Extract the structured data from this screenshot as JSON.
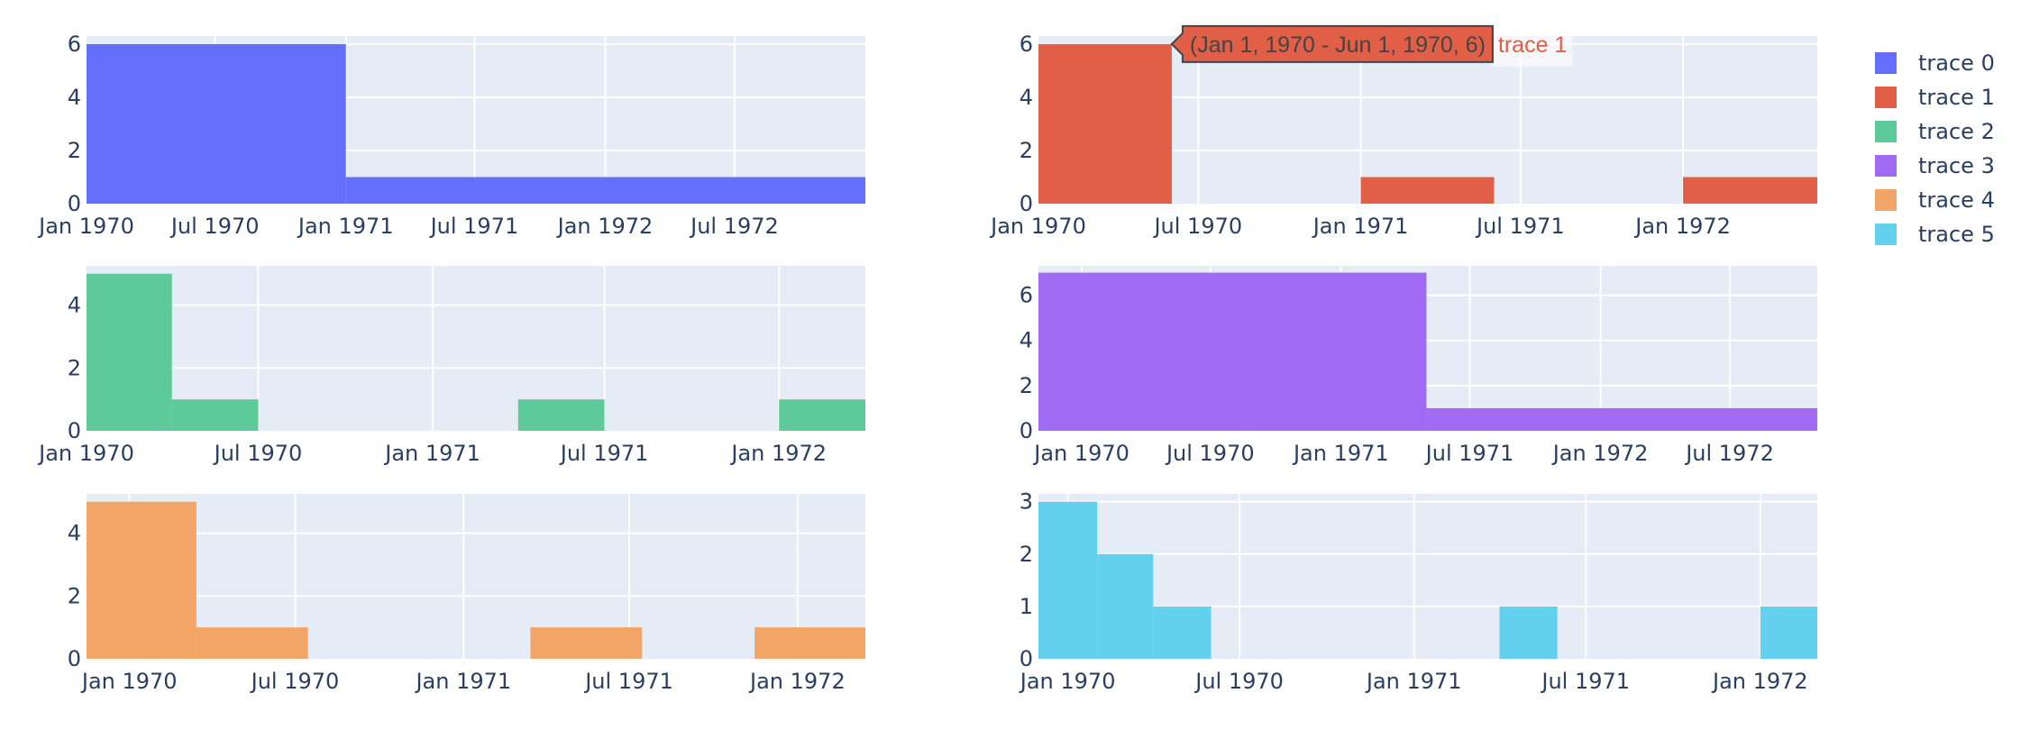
{
  "chart_data": {
    "type": "bar",
    "subplots": [
      {
        "name": "trace 0",
        "color": "#636efa",
        "x_ticks": [
          "Jan 1970",
          "Jul 1970",
          "Jan 1971",
          "Jul 1971",
          "Jan 1972",
          "Jul 1972"
        ],
        "y_ticks": [
          "0",
          "2",
          "4",
          "6"
        ],
        "bins": [
          {
            "start": "1970-01-01",
            "end": "1971-01-01",
            "value": 6
          },
          {
            "start": "1971-01-01",
            "end": "1973-01-01",
            "value": 1
          }
        ],
        "xrange": [
          "1970-01-01",
          "1973-01-01"
        ],
        "ylim": [
          0,
          6.3
        ]
      },
      {
        "name": "trace 1",
        "color": "#e05f46",
        "x_ticks": [
          "Jan 1970",
          "Jul 1970",
          "Jan 1971",
          "Jul 1971",
          "Jan 1972"
        ],
        "y_ticks": [
          "0",
          "2",
          "4",
          "6"
        ],
        "bins": [
          {
            "start": "1970-01-01",
            "end": "1970-06-01",
            "value": 6
          },
          {
            "start": "1971-01-01",
            "end": "1971-06-01",
            "value": 1
          },
          {
            "start": "1972-01-01",
            "end": "1972-06-01",
            "value": 1
          }
        ],
        "xrange": [
          "1970-01-01",
          "1972-06-01"
        ],
        "ylim": [
          0,
          6.3
        ]
      },
      {
        "name": "trace 2",
        "color": "#5ccb99",
        "x_ticks": [
          "Jan 1970",
          "Jul 1970",
          "Jan 1971",
          "Jul 1971",
          "Jan 1972"
        ],
        "y_ticks": [
          "0",
          "2",
          "4"
        ],
        "bins": [
          {
            "start": "1970-01-01",
            "end": "1970-04-01",
            "value": 5
          },
          {
            "start": "1970-04-01",
            "end": "1970-07-01",
            "value": 1
          },
          {
            "start": "1971-04-01",
            "end": "1971-07-01",
            "value": 1
          },
          {
            "start": "1972-01-01",
            "end": "1972-04-01",
            "value": 1
          }
        ],
        "xrange": [
          "1970-01-01",
          "1972-04-01"
        ],
        "ylim": [
          0,
          5.25
        ]
      },
      {
        "name": "trace 3",
        "color": "#a06bf2",
        "x_ticks": [
          "Jan 1970",
          "Jul 1970",
          "Jan 1971",
          "Jul 1971",
          "Jan 1972",
          "Jul 1972"
        ],
        "y_ticks": [
          "0",
          "2",
          "4",
          "6"
        ],
        "bins": [
          {
            "start": "1969-11-01",
            "end": "1971-05-01",
            "value": 7
          },
          {
            "start": "1971-05-01",
            "end": "1972-11-01",
            "value": 1
          }
        ],
        "xrange": [
          "1969-11-01",
          "1972-11-01"
        ],
        "ylim": [
          0,
          7.3
        ]
      },
      {
        "name": "trace 4",
        "color": "#f2a567",
        "x_ticks": [
          "Jan 1970",
          "Jul 1970",
          "Jan 1971",
          "Jul 1971",
          "Jan 1972"
        ],
        "y_ticks": [
          "0",
          "2",
          "4"
        ],
        "bins": [
          {
            "start": "1969-11-15",
            "end": "1970-03-15",
            "value": 5
          },
          {
            "start": "1970-03-15",
            "end": "1970-07-15",
            "value": 1
          },
          {
            "start": "1971-03-15",
            "end": "1971-07-15",
            "value": 1
          },
          {
            "start": "1971-11-15",
            "end": "1972-03-15",
            "value": 1
          }
        ],
        "xrange": [
          "1969-11-15",
          "1972-03-15"
        ],
        "ylim": [
          0,
          5.25
        ]
      },
      {
        "name": "trace 5",
        "color": "#63d0ee",
        "x_ticks": [
          "Jan 1970",
          "Jul 1970",
          "Jan 1971",
          "Jul 1971",
          "Jan 1972"
        ],
        "y_ticks": [
          "0",
          "1",
          "2",
          "3"
        ],
        "bins": [
          {
            "start": "1969-12-01",
            "end": "1970-02-01",
            "value": 3
          },
          {
            "start": "1970-02-01",
            "end": "1970-04-01",
            "value": 2
          },
          {
            "start": "1970-04-01",
            "end": "1970-06-01",
            "value": 1
          },
          {
            "start": "1971-04-01",
            "end": "1971-06-01",
            "value": 1
          },
          {
            "start": "1972-01-01",
            "end": "1972-03-01",
            "value": 1
          }
        ],
        "xrange": [
          "1969-12-01",
          "1972-03-01"
        ],
        "ylim": [
          0,
          3.15
        ]
      }
    ],
    "legend": {
      "placement": "right",
      "items": [
        "trace 0",
        "trace 1",
        "trace 2",
        "trace 3",
        "trace 4",
        "trace 5"
      ]
    },
    "hover": {
      "label": "(Jan 1, 1970 - Jun 1, 1970, 6)",
      "trace": "trace 1",
      "subplot": 1,
      "bin": 0
    },
    "colors": {
      "plot_bg": "#e5ecf6",
      "grid": "#ffffff",
      "text": "#2a3f5f"
    }
  }
}
